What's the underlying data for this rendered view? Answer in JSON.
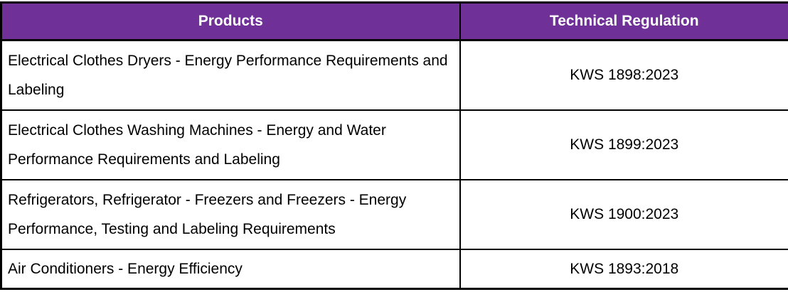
{
  "table": {
    "headers": [
      "Products",
      "Technical Regulation"
    ],
    "rows": [
      {
        "product": "Electrical Clothes Dryers - Energy Performance Requirements and Labeling",
        "regulation": "KWS 1898:2023"
      },
      {
        "product": "Electrical Clothes Washing Machines - Energy and Water Performance Requirements and Labeling",
        "regulation": "KWS 1899:2023"
      },
      {
        "product": "Refrigerators, Refrigerator - Freezers and Freezers - Energy Performance, Testing and Labeling Requirements",
        "regulation": "KWS 1900:2023"
      },
      {
        "product": "Air Conditioners - Energy Efficiency",
        "regulation": "KWS 1893:2018"
      }
    ],
    "colors": {
      "header_bg": "#6F3198",
      "header_text": "#FFFFFF",
      "border": "#000000",
      "body_text": "#000000",
      "body_bg": "#FFFFFF"
    }
  }
}
